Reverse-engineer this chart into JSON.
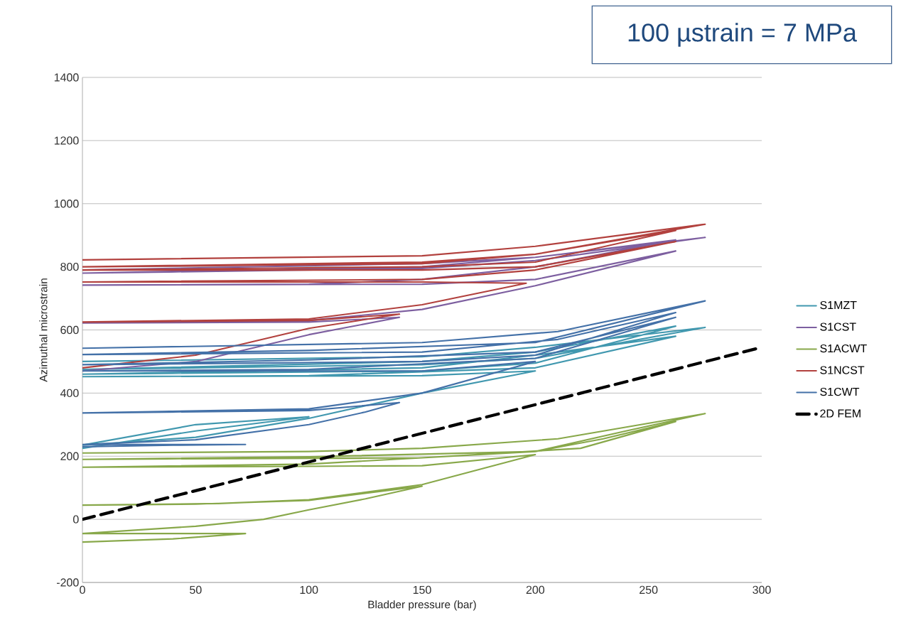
{
  "chart_data": {
    "type": "line",
    "xlabel": "Bladder pressure (bar)",
    "ylabel": "Azimuthal microstrain",
    "annotations": [
      "100 µstrain = 7 MPa"
    ],
    "xlim": [
      0,
      300
    ],
    "xticks": [
      0,
      50,
      100,
      150,
      200,
      250,
      300
    ],
    "ylim": [
      -200,
      1400
    ],
    "yticks": [
      -200,
      0,
      200,
      400,
      600,
      800,
      1000,
      1200,
      1400
    ],
    "grid": "y",
    "legend": "right",
    "marker": "none",
    "line_style": "solid",
    "series": [
      {
        "name": "S1MZT",
        "color": "#4198af",
        "x": [
          0,
          50,
          100,
          50,
          0,
          50,
          100,
          150,
          200,
          150,
          0,
          100,
          200,
          262,
          200,
          150,
          0,
          150,
          200,
          262,
          200,
          150,
          0,
          150,
          200,
          275,
          200,
          150,
          0
        ],
        "values": [
          225,
          280,
          325,
          300,
          235,
          260,
          320,
          400,
          470,
          455,
          452,
          455,
          480,
          580,
          520,
          480,
          460,
          470,
          495,
          612,
          530,
          500,
          475,
          490,
          510,
          608,
          545,
          515,
          500
        ]
      },
      {
        "name": "S1CST",
        "color": "#7d5fa0",
        "x": [
          0,
          50,
          100,
          140,
          100,
          0,
          100,
          150,
          200,
          262,
          200,
          150,
          0,
          100,
          150,
          200,
          262,
          200,
          150,
          0,
          150,
          200,
          275,
          200,
          150,
          0
        ],
        "values": [
          470,
          500,
          585,
          640,
          625,
          622,
          630,
          665,
          740,
          850,
          760,
          745,
          742,
          745,
          760,
          800,
          885,
          830,
          800,
          780,
          795,
          820,
          893,
          830,
          810,
          790
        ]
      },
      {
        "name": "S1ACWT",
        "color": "#88a84a",
        "x": [
          0,
          40,
          72,
          0,
          50,
          80,
          100,
          125,
          150,
          100,
          50,
          0,
          60,
          100,
          150,
          200,
          150,
          100,
          0,
          100,
          200,
          230,
          262,
          220,
          150,
          0,
          100,
          200,
          240,
          275,
          210,
          150,
          100,
          0
        ],
        "values": [
          -72,
          -62,
          -45,
          -45,
          -22,
          0,
          30,
          65,
          105,
          60,
          48,
          45,
          50,
          62,
          110,
          205,
          170,
          168,
          165,
          175,
          215,
          255,
          310,
          225,
          195,
          190,
          198,
          215,
          280,
          335,
          255,
          225,
          215,
          210
        ]
      },
      {
        "name": "S1NCST",
        "color": "#b2413e",
        "x": [
          0,
          50,
          100,
          140,
          100,
          0,
          100,
          150,
          196,
          150,
          0,
          150,
          200,
          262,
          200,
          150,
          0,
          150,
          200,
          262,
          200,
          150,
          0,
          150,
          200,
          275,
          200,
          150,
          0
        ],
        "values": [
          480,
          520,
          605,
          650,
          630,
          625,
          635,
          680,
          748,
          752,
          752,
          760,
          790,
          880,
          800,
          790,
          790,
          800,
          815,
          915,
          840,
          810,
          800,
          815,
          840,
          935,
          865,
          835,
          822
        ]
      },
      {
        "name": "S1CWT",
        "color": "#4471a8",
        "x": [
          0,
          40,
          72,
          0,
          50,
          100,
          125,
          140,
          100,
          0,
          100,
          150,
          200,
          150,
          0,
          100,
          200,
          262,
          200,
          100,
          0,
          150,
          200,
          262,
          210,
          150,
          0,
          100,
          200,
          275,
          210,
          150,
          0
        ],
        "values": [
          230,
          235,
          237,
          237,
          252,
          300,
          340,
          370,
          345,
          337,
          350,
          400,
          500,
          470,
          470,
          475,
          510,
          640,
          530,
          505,
          490,
          500,
          520,
          655,
          570,
          530,
          522,
          535,
          560,
          692,
          595,
          560,
          542
        ]
      },
      {
        "name": "2D FEM",
        "color": "#000000",
        "line_style": "dashed",
        "x": [
          0,
          300
        ],
        "values": [
          0,
          545
        ]
      }
    ]
  }
}
